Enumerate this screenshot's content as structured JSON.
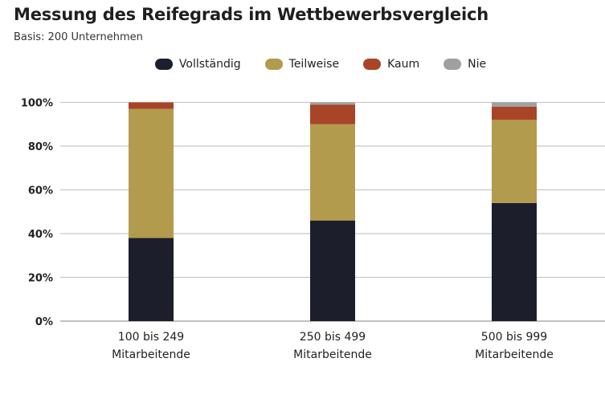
{
  "chart_data": {
    "type": "bar",
    "stacked": true,
    "title": "Messung des Reifegrads im Wettbewerbsvergleich",
    "subtitle": "Basis: 200 Unternehmen",
    "categories": [
      [
        "100 bis 249",
        "Mitarbeitende"
      ],
      [
        "250 bis 499",
        "Mitarbeitende"
      ],
      [
        "500 bis 999",
        "Mitarbeitende"
      ]
    ],
    "series": [
      {
        "name": "Vollständig",
        "color": "#1c1f2b",
        "values": [
          38,
          46,
          54
        ]
      },
      {
        "name": "Teilweise",
        "color": "#b39b4e",
        "values": [
          59,
          44,
          38
        ]
      },
      {
        "name": "Kaum",
        "color": "#a84527",
        "values": [
          3,
          9,
          6
        ]
      },
      {
        "name": "Nie",
        "color": "#a0a0a0",
        "values": [
          0,
          1,
          2
        ]
      }
    ],
    "yticks": [
      "0%",
      "20%",
      "40%",
      "60%",
      "80%",
      "100%"
    ],
    "ylim": [
      0,
      100
    ],
    "grid": true,
    "legend_position": "top-center",
    "xlabel": "",
    "ylabel": ""
  }
}
